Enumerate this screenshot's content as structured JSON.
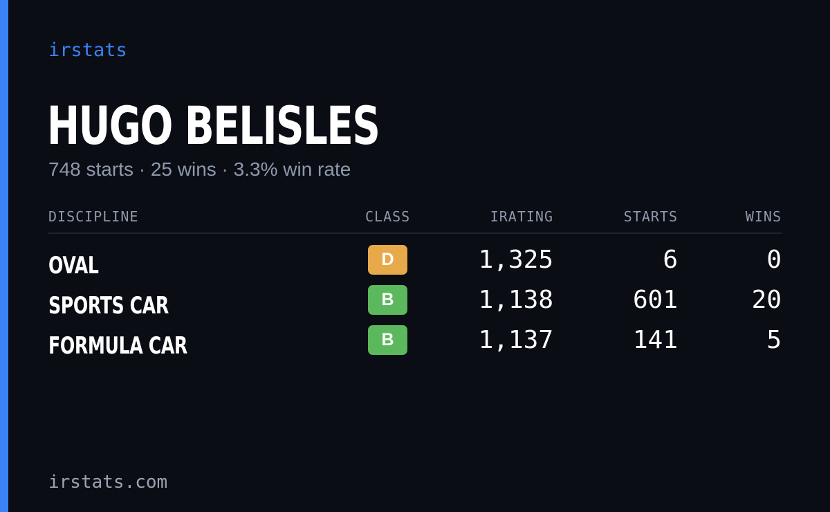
{
  "brand": "irstats",
  "driver": {
    "name": "HUGO BELISLES",
    "summary": "748 starts · 25 wins · 3.3% win rate"
  },
  "table": {
    "headers": {
      "discipline": "DISCIPLINE",
      "class": "CLASS",
      "irating": "IRATING",
      "starts": "STARTS",
      "wins": "WINS"
    },
    "rows": [
      {
        "discipline": "OVAL",
        "class": "D",
        "class_color": "#e8a94b",
        "irating": "1,325",
        "starts": "6",
        "wins": "0"
      },
      {
        "discipline": "SPORTS CAR",
        "class": "B",
        "class_color": "#5cb85c",
        "irating": "1,138",
        "starts": "601",
        "wins": "20"
      },
      {
        "discipline": "FORMULA CAR",
        "class": "B",
        "class_color": "#5cb85c",
        "irating": "1,137",
        "starts": "141",
        "wins": "5"
      }
    ]
  },
  "footer": "irstats.com",
  "colors": {
    "accent": "#3b82f6",
    "background": "#0a0d14",
    "muted_text": "#8e99ab"
  }
}
